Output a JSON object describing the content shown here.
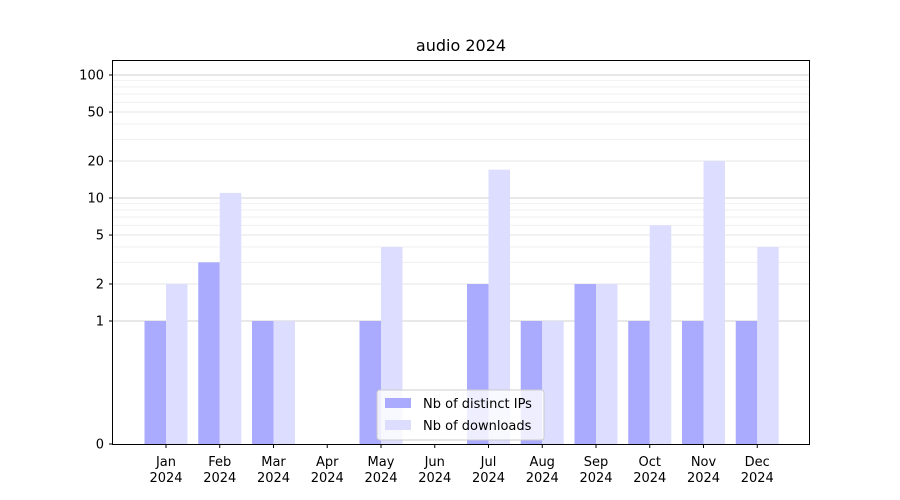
{
  "chart_data": {
    "type": "bar",
    "title": "audio 2024",
    "xlabel": "",
    "ylabel": "",
    "yscale": "symlog",
    "ylim": [
      0,
      130
    ],
    "ytick_labels": [
      "0",
      "1",
      "2",
      "5",
      "10",
      "20",
      "50",
      "100"
    ],
    "grid": "horizontal",
    "legend_position": "lower-center",
    "categories": [
      "Jan\n2024",
      "Feb\n2024",
      "Mar\n2024",
      "Apr\n2024",
      "May\n2024",
      "Jun\n2024",
      "Jul\n2024",
      "Aug\n2024",
      "Sep\n2024",
      "Oct\n2024",
      "Nov\n2024",
      "Dec\n2024"
    ],
    "series": [
      {
        "name": "Nb of distinct IPs",
        "color": "#aaaaff",
        "values": [
          1,
          3,
          1,
          0,
          1,
          0,
          2,
          1,
          2,
          1,
          1,
          1
        ]
      },
      {
        "name": "Nb of downloads",
        "color": "#ddddff",
        "values": [
          2,
          11,
          1,
          0,
          4,
          0,
          17,
          1,
          2,
          6,
          20,
          4
        ]
      }
    ]
  }
}
